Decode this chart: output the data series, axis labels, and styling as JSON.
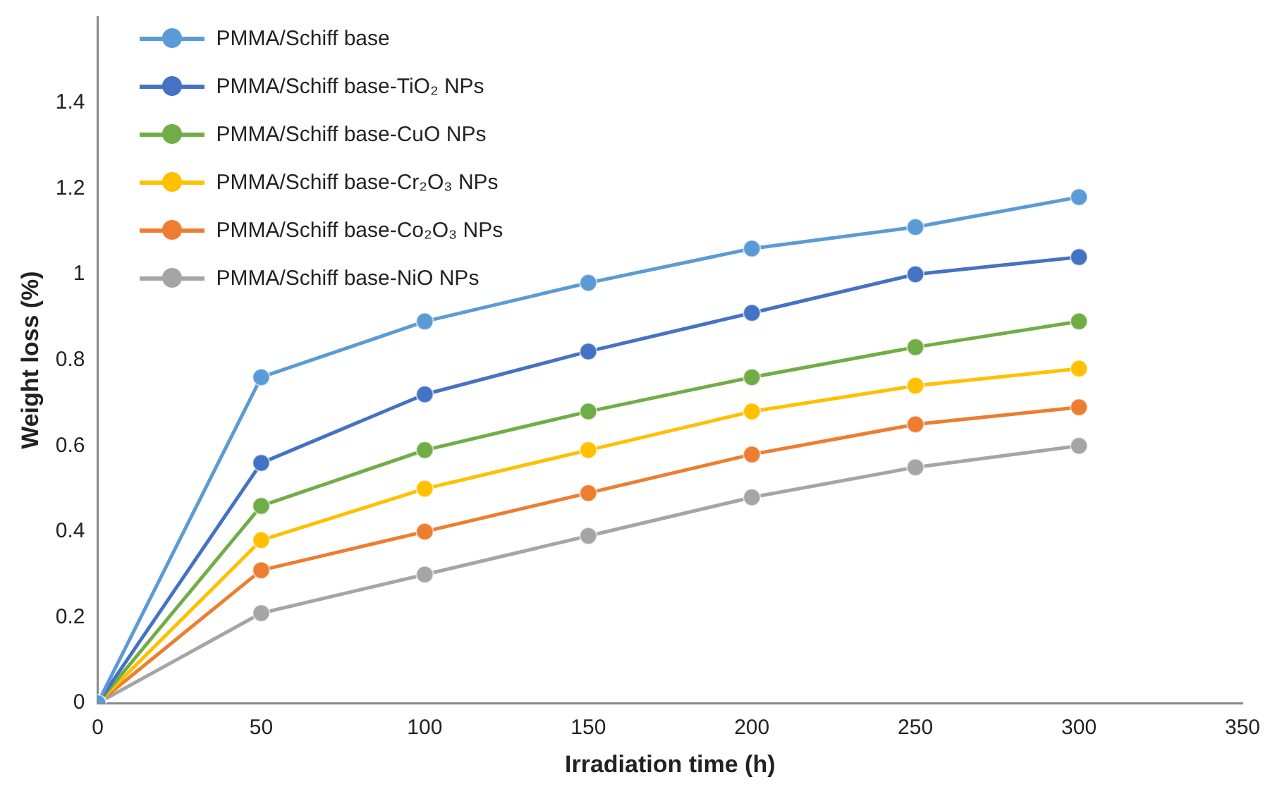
{
  "chart_data": {
    "type": "line",
    "xlabel": "Irradiation time (h)",
    "ylabel": "Weight loss (%)",
    "x": [
      0,
      50,
      100,
      150,
      200,
      250,
      300
    ],
    "xlim": [
      0,
      350
    ],
    "xticks": [
      0,
      50,
      100,
      150,
      200,
      250,
      300,
      350
    ],
    "ylim": [
      0,
      1.6
    ],
    "yticks": [
      0,
      0.2,
      0.4,
      0.6,
      0.8,
      1,
      1.2,
      1.4
    ],
    "grid": false,
    "legend": "top left",
    "marker": "circle",
    "line_style": "solid",
    "series": [
      {
        "name": "PMMA/Schiff base",
        "color": "#5b9bd5",
        "values": [
          0,
          0.76,
          0.89,
          0.98,
          1.06,
          1.11,
          1.18
        ]
      },
      {
        "name": "PMMA/Schiff base-TiO₂ NPs",
        "color": "#4472c4",
        "values": [
          0,
          0.56,
          0.72,
          0.82,
          0.91,
          1.0,
          1.04
        ]
      },
      {
        "name": "PMMA/Schiff base-CuO NPs",
        "color": "#70ad47",
        "values": [
          0,
          0.46,
          0.59,
          0.68,
          0.76,
          0.83,
          0.89
        ]
      },
      {
        "name": "PMMA/Schiff base-Cr₂O₃ NPs",
        "color": "#ffc000",
        "values": [
          0,
          0.38,
          0.5,
          0.59,
          0.68,
          0.74,
          0.78
        ]
      },
      {
        "name": "PMMA/Schiff base-Co₂O₃ NPs",
        "color": "#ed7d31",
        "values": [
          0,
          0.31,
          0.4,
          0.49,
          0.58,
          0.65,
          0.69
        ]
      },
      {
        "name": "PMMA/Schiff base-NiO NPs",
        "color": "#a5a5a5",
        "values": [
          0,
          0.21,
          0.3,
          0.39,
          0.48,
          0.55,
          0.6
        ]
      }
    ]
  }
}
